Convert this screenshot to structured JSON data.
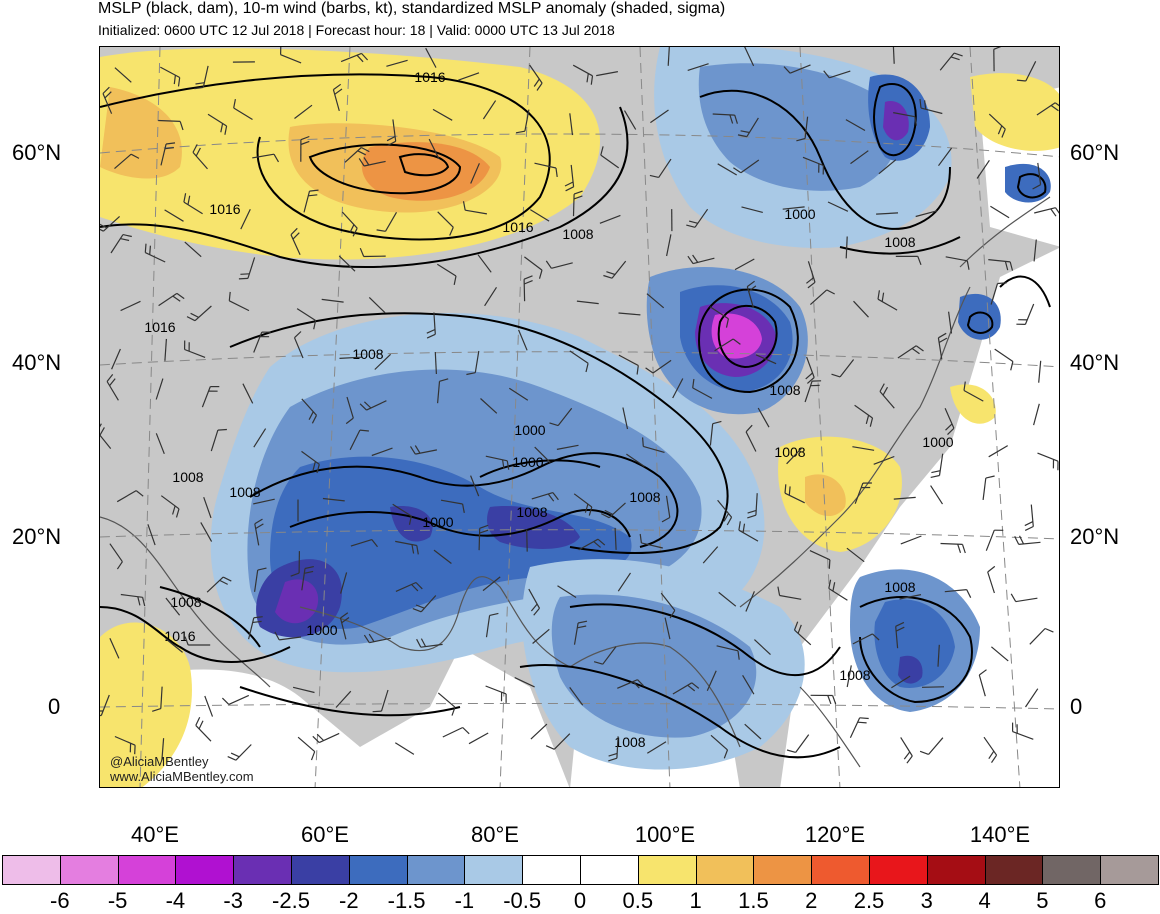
{
  "header": {
    "title": "MSLP (black, dam), 10-m wind (barbs, kt), standardized MSLP anomaly (shaded, sigma)",
    "subtitle": "Initialized: 0600 UTC 12 Jul 2018 | Forecast hour: 18 | Valid: 0000 UTC 13 Jul 2018"
  },
  "map": {
    "lat_labels": [
      "60°N",
      "40°N",
      "20°N",
      "0"
    ],
    "lon_labels": [
      "40°E",
      "60°E",
      "80°E",
      "100°E",
      "120°E",
      "140°E"
    ],
    "contour_labels": [
      "1016",
      "1016",
      "1016",
      "1008",
      "1016",
      "1008",
      "1008",
      "1000",
      "1008",
      "1000",
      "1008",
      "1000",
      "1000",
      "1008",
      "1008",
      "1016",
      "1000",
      "1008",
      "1008",
      "1000",
      "1008",
      "1008",
      "1008",
      "1008"
    ],
    "credit_handle": "@AliciaMBentley",
    "credit_url": "www.AliciaMBentley.com",
    "colors": {
      "land": "#c8c8c8",
      "ocean": "#ffffff",
      "contour": "#000000",
      "coast": "#555555"
    }
  },
  "colorbar": {
    "labels": [
      "-6",
      "-5",
      "-4",
      "-3",
      "-2.5",
      "-2",
      "-1.5",
      "-1",
      "-0.5",
      "0",
      "0.5",
      "1",
      "1.5",
      "2",
      "2.5",
      "3",
      "4",
      "5",
      "6"
    ],
    "colors": [
      "#eebde9",
      "#e47ee0",
      "#d541d9",
      "#b011d1",
      "#6a2fb3",
      "#3a3fa4",
      "#3d6cbe",
      "#6d95cd",
      "#a9c9e6",
      "#ffffff",
      "#ffffff",
      "#f7e46d",
      "#f1c05a",
      "#ed9444",
      "#ee5a2f",
      "#e8161b",
      "#a50d14",
      "#6b2624",
      "#716665",
      "#a69a99"
    ]
  }
}
